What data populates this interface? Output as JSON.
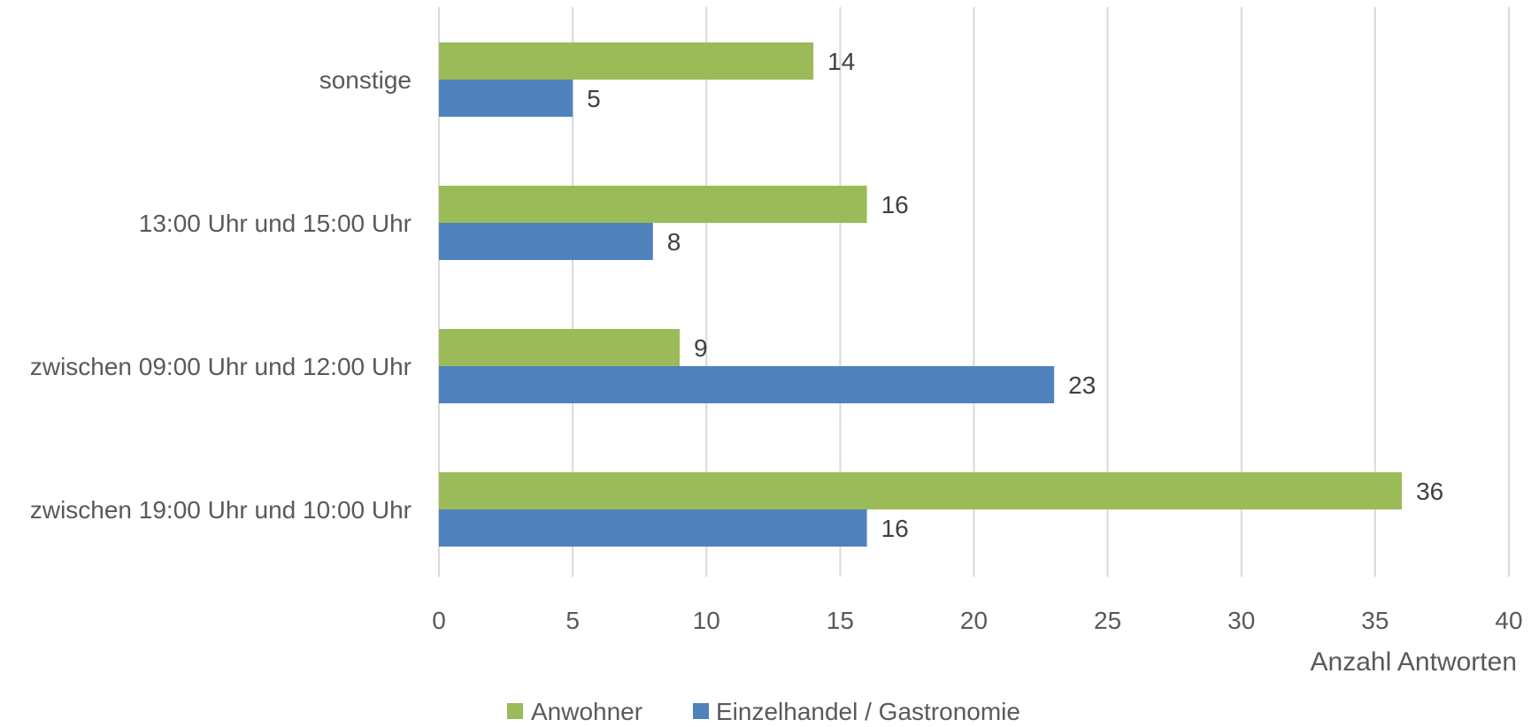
{
  "chart_data": {
    "type": "bar",
    "orientation": "horizontal",
    "categories": [
      "sonstige",
      "13:00 Uhr und 15:00 Uhr",
      "zwischen 09:00 Uhr und 12:00 Uhr",
      "zwischen 19:00 Uhr und 10:00 Uhr"
    ],
    "series": [
      {
        "name": "Anwohner",
        "color": "#9bbb59",
        "values": [
          14,
          16,
          9,
          36
        ]
      },
      {
        "name": "Einzelhandel / Gastronomie",
        "color": "#4f81bd",
        "values": [
          5,
          8,
          23,
          16
        ]
      }
    ],
    "title": "",
    "xlabel": "Anzahl Antworten",
    "ylabel": "",
    "xlim": [
      0,
      40
    ],
    "xticks": [
      0,
      5,
      10,
      15,
      20,
      25,
      30,
      35,
      40
    ],
    "grid": true,
    "data_labels": true,
    "legend_position": "bottom"
  }
}
